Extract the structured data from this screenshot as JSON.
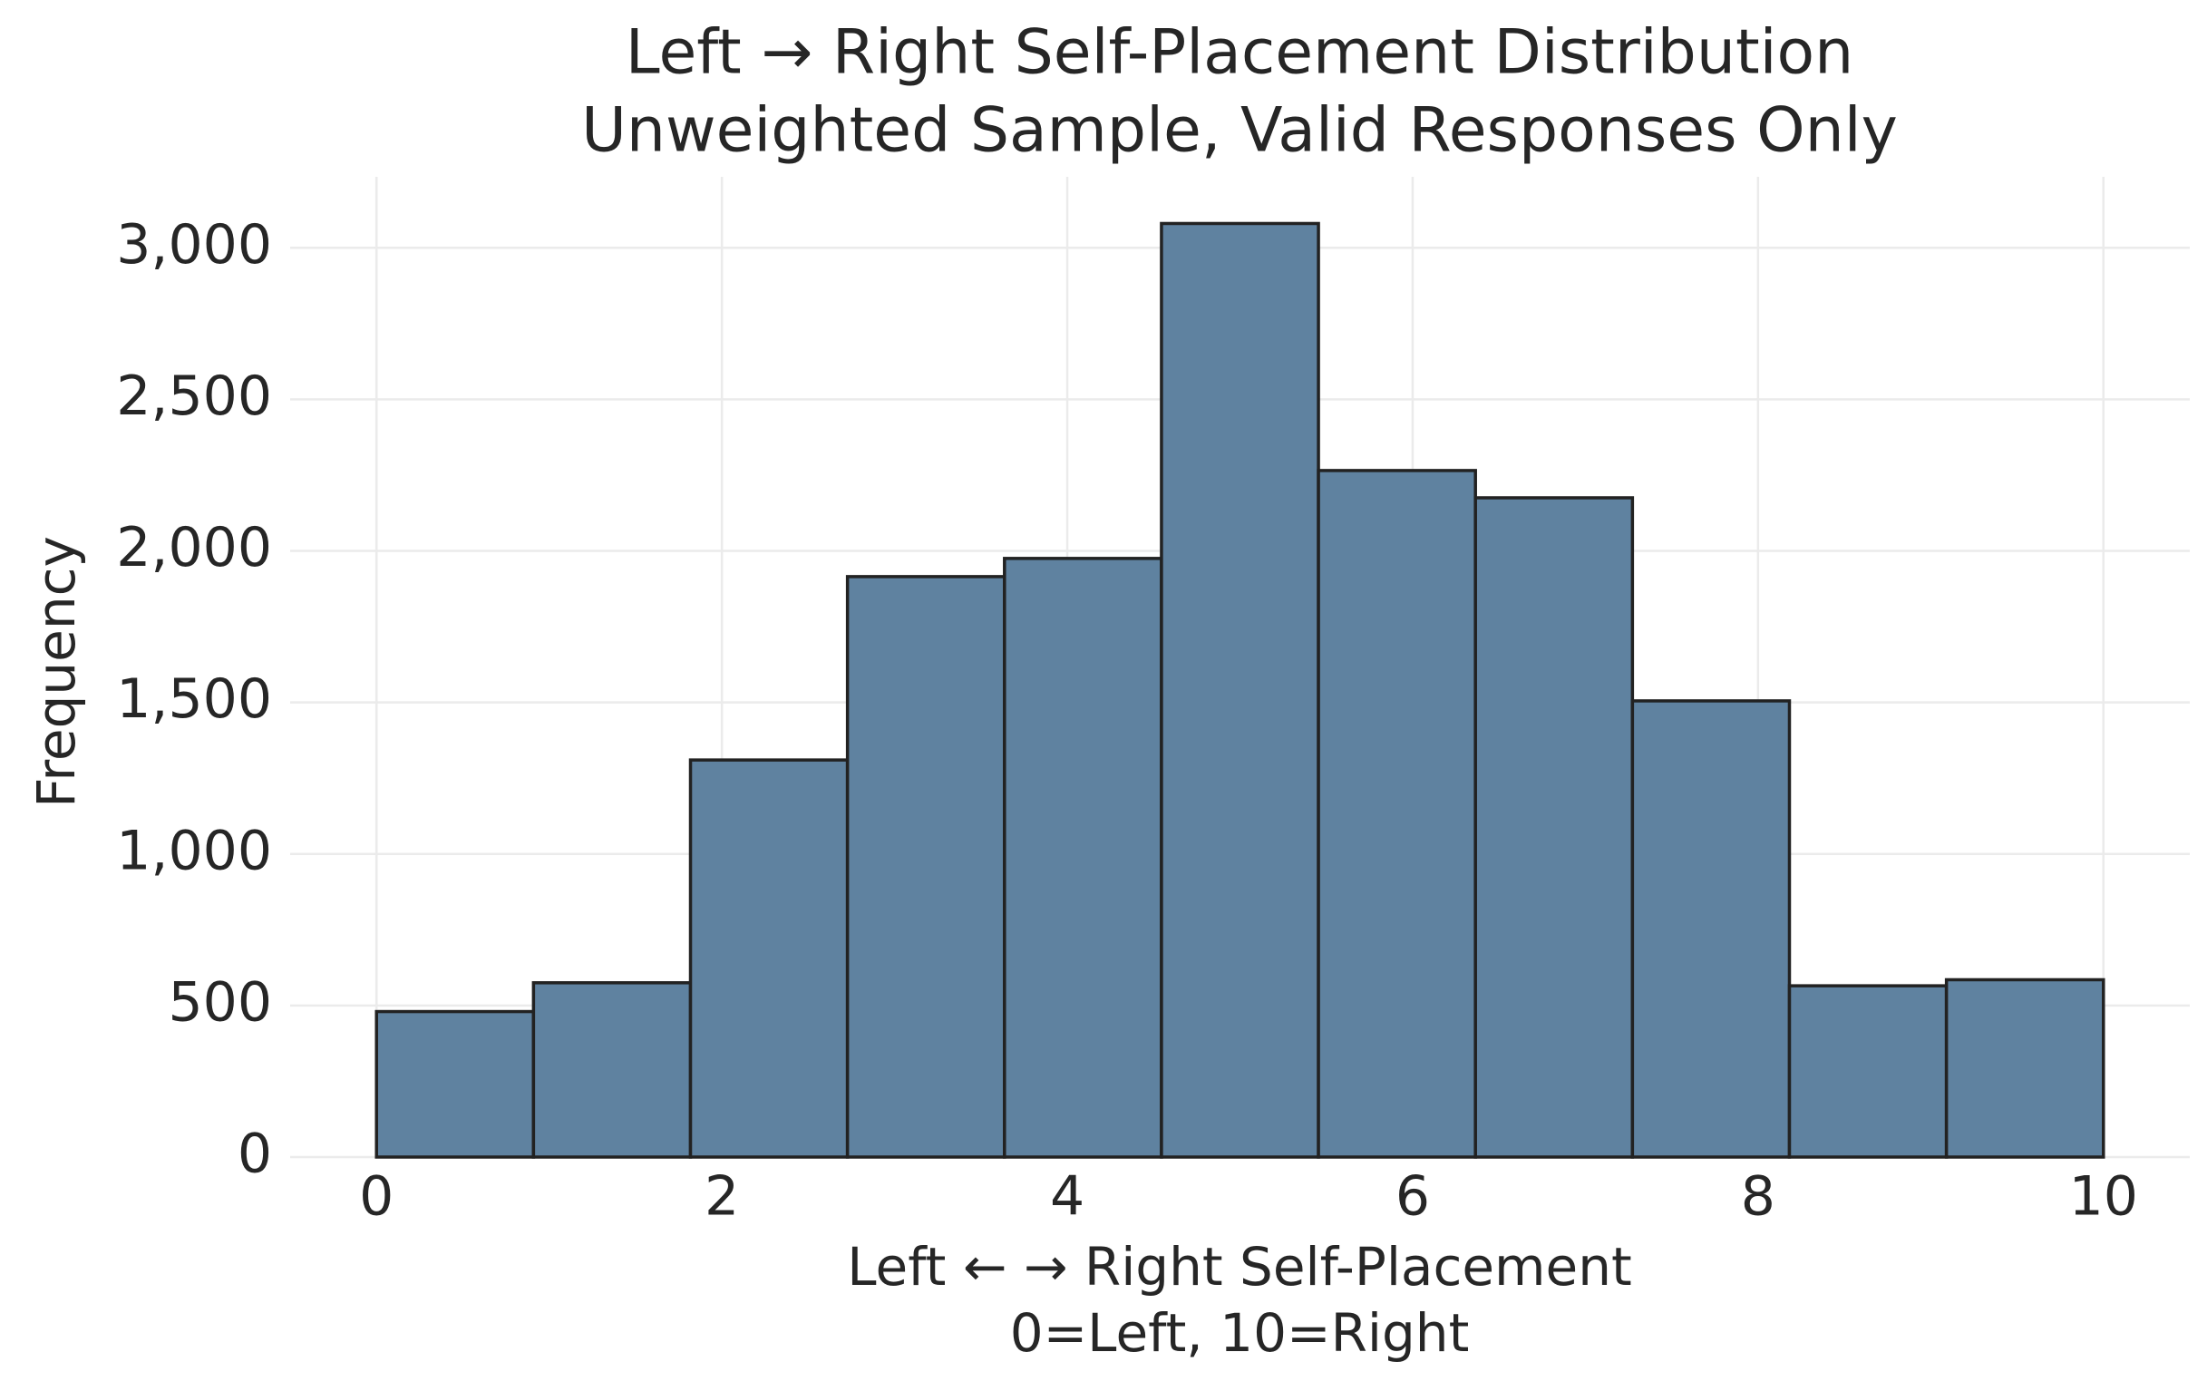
{
  "chart_data": {
    "type": "histogram",
    "title": "Left → Right Self-Placement Distribution",
    "subtitle": "Unweighted Sample, Valid Responses Only",
    "xlabel": [
      "Left ← → Right Self-Placement",
      "0=Left, 10=Right"
    ],
    "ylabel": "Frequency",
    "bins": [
      0,
      0.9090909,
      1.8181818,
      2.7272727,
      3.6363636,
      4.5454545,
      5.4545455,
      6.3636364,
      7.2727273,
      8.1818182,
      9.0909091,
      10
    ],
    "values": [
      480,
      575,
      1310,
      1915,
      1975,
      3080,
      2265,
      2175,
      1505,
      565,
      585
    ],
    "color": "#5f82a0",
    "edgecolor": "#222222",
    "xlim": [
      -0.5,
      10.5
    ],
    "ylim": [
      0,
      3234
    ],
    "xticks": [
      0,
      2,
      4,
      6,
      8,
      10
    ],
    "yticks": [
      0,
      500,
      {
        "value": 1000,
        "label": "1,000"
      },
      {
        "value": 1500,
        "label": "1,500"
      },
      {
        "value": 2000,
        "label": "2,000"
      },
      {
        "value": 2500,
        "label": "2,500"
      },
      {
        "value": 3000,
        "label": "3,000"
      }
    ],
    "grid": true
  }
}
